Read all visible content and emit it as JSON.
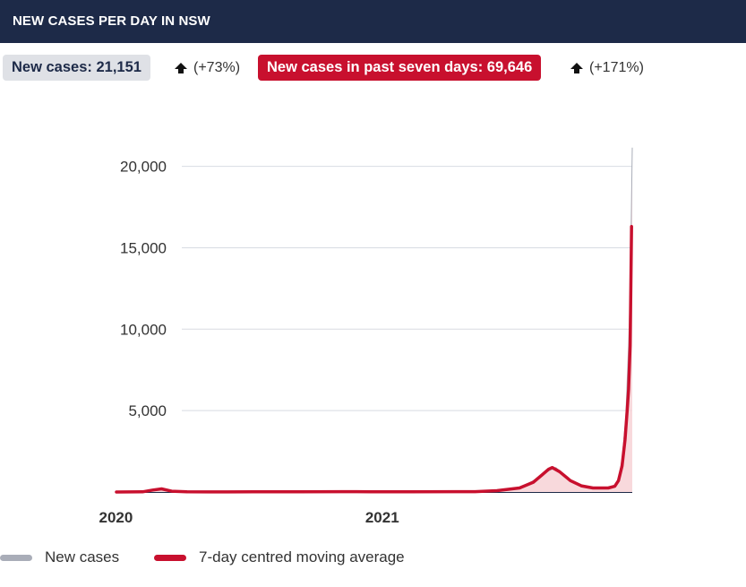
{
  "header": {
    "title": "NEW CASES PER DAY IN NSW"
  },
  "stats": {
    "new_cases_label": "New cases: 21,151",
    "new_cases_change": "(+73%)",
    "week_cases_label": "New cases in past seven days: 69,646",
    "week_cases_change": "(+171%)"
  },
  "legend": {
    "items": [
      {
        "label": "New cases",
        "color": "#a9adb8"
      },
      {
        "label": "7-day centred moving average",
        "color": "#c8102e"
      }
    ]
  },
  "colors": {
    "header_bg": "#1d2a48",
    "accent_red": "#c8102e",
    "grid": "#d8dbe2",
    "new_cases": "#a9adb8"
  },
  "chart_data": {
    "type": "line",
    "title": "",
    "xlabel": "",
    "ylabel": "",
    "x_ticks": [
      "2020",
      "2021"
    ],
    "y_ticks": [
      5000,
      10000,
      15000,
      20000
    ],
    "y_tick_labels": [
      "5,000",
      "10,000",
      "15,000",
      "20,000"
    ],
    "ylim": [
      0,
      21300
    ],
    "xlim": [
      "2020-01-25",
      "2022-01-03"
    ],
    "grid": true,
    "series": [
      {
        "name": "New cases",
        "dates": [
          "2020-01-25",
          "2020-03-01",
          "2020-03-15",
          "2020-03-27",
          "2020-04-10",
          "2020-06-01",
          "2020-08-01",
          "2020-10-01",
          "2020-12-20",
          "2021-01-10",
          "2021-03-01",
          "2021-06-01",
          "2021-07-01",
          "2021-08-01",
          "2021-08-20",
          "2021-09-10",
          "2021-09-20",
          "2021-10-10",
          "2021-11-01",
          "2021-12-01",
          "2021-12-10",
          "2021-12-15",
          "2021-12-20",
          "2021-12-25",
          "2021-12-29",
          "2021-12-31",
          "2022-01-02",
          "2022-01-03"
        ],
        "values": [
          0,
          10,
          150,
          210,
          40,
          5,
          15,
          10,
          20,
          10,
          10,
          20,
          80,
          250,
          700,
          1300,
          1500,
          700,
          250,
          250,
          400,
          800,
          2000,
          4500,
          9000,
          12000,
          18000,
          21151
        ]
      },
      {
        "name": "7-day centred moving average",
        "dates": [
          "2020-01-25",
          "2020-03-01",
          "2020-03-15",
          "2020-03-27",
          "2020-04-10",
          "2020-05-01",
          "2020-06-01",
          "2020-08-01",
          "2020-10-01",
          "2020-12-20",
          "2021-01-10",
          "2021-03-01",
          "2021-06-01",
          "2021-07-01",
          "2021-08-01",
          "2021-08-20",
          "2021-09-01",
          "2021-09-10",
          "2021-09-15",
          "2021-09-25",
          "2021-10-10",
          "2021-10-25",
          "2021-11-10",
          "2021-12-01",
          "2021-12-10",
          "2021-12-15",
          "2021-12-20",
          "2021-12-24",
          "2021-12-27",
          "2021-12-29",
          "2021-12-31",
          "2022-01-01",
          "2022-01-02"
        ],
        "values": [
          0,
          10,
          120,
          190,
          50,
          15,
          5,
          15,
          10,
          20,
          10,
          10,
          20,
          80,
          250,
          600,
          1050,
          1400,
          1500,
          1250,
          700,
          380,
          250,
          250,
          350,
          700,
          1600,
          3200,
          5000,
          6300,
          9000,
          12500,
          16300
        ]
      }
    ]
  }
}
